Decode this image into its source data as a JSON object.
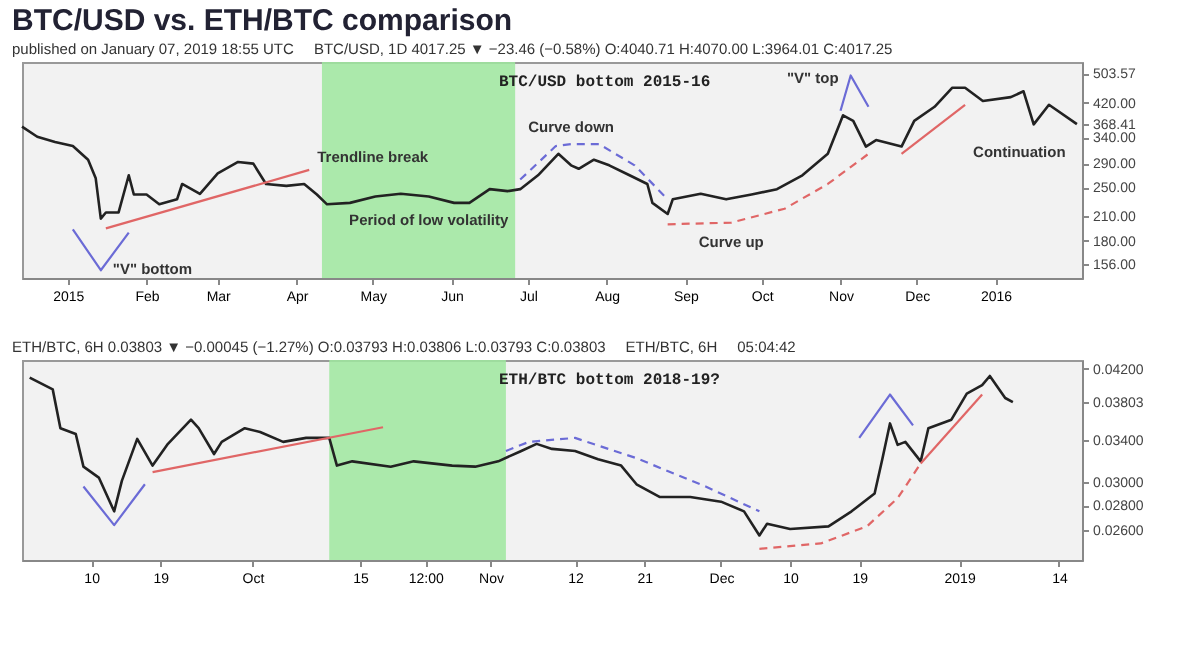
{
  "chart_data": [
    {
      "type": "line",
      "title": "BTC/USD vs. ETH/BTC comparison",
      "subtitle": "BTC/USD bottom 2015-16",
      "log": true,
      "annotations": [
        "published on January 07, 2019 18:55 UTC",
        "BTC/USD, 1D 4017.25 ▼ −23.46 (−0.58%) O:4040.71 H:4070.00 L:3964.01 C:4017.25",
        {
          "text": "Trendline break",
          "x": "2015-04-06",
          "y": 278
        },
        {
          "text": "\"V\" bottom",
          "x": "2015-01-14",
          "y": 150
        },
        {
          "text": "Period of low volatility",
          "x": "2015-05-23",
          "y": 236
        },
        {
          "text": "Curve down",
          "x": "2015-07-18",
          "y": 326
        },
        {
          "text": "\"V\" top",
          "x": "2015-11-05",
          "y": 497
        },
        {
          "text": "Curve up",
          "x": "2015-09-19",
          "y": 201
        },
        {
          "text": "Continuation",
          "x": "2015-12-20",
          "y": 415
        }
      ],
      "xlim": [
        "2014-12-14",
        "2016-02-04"
      ],
      "xticks": [
        {
          "value": "2015-01-01",
          "label": "2015"
        },
        {
          "value": "2015-02-01",
          "label": "Feb"
        },
        {
          "value": "2015-03-01",
          "label": "Mar"
        },
        {
          "value": "2015-04-01",
          "label": "Apr"
        },
        {
          "value": "2015-05-01",
          "label": "May"
        },
        {
          "value": "2015-06-01",
          "label": "Jun"
        },
        {
          "value": "2015-07-01",
          "label": "Jul"
        },
        {
          "value": "2015-08-01",
          "label": "Aug"
        },
        {
          "value": "2015-09-01",
          "label": "Sep"
        },
        {
          "value": "2015-10-01",
          "label": "Oct"
        },
        {
          "value": "2015-11-01",
          "label": "Nov"
        },
        {
          "value": "2015-12-01",
          "label": "Dec"
        },
        {
          "value": "2016-01-01",
          "label": "2016"
        }
      ],
      "ylim": [
        143,
        540
      ],
      "yticks": [
        {
          "value": 503.57,
          "label": "503.57"
        },
        {
          "value": 420,
          "label": "420.00"
        },
        {
          "value": 368.41,
          "label": "368.41"
        },
        {
          "value": 340,
          "label": "340.00"
        },
        {
          "value": 290,
          "label": "290.00"
        },
        {
          "value": 250,
          "label": "250.00"
        },
        {
          "value": 210,
          "label": "210.00"
        },
        {
          "value": 180,
          "label": "180.00"
        },
        {
          "value": 156,
          "label": "156.00"
        }
      ],
      "bands": [
        {
          "axis": "x",
          "from": "2015-04-11",
          "to": "2015-06-26",
          "color": "#9fe89f"
        }
      ],
      "series": [
        {
          "color": "#222222",
          "x": [
            "2014-12-14",
            "2014-12-20",
            "2014-12-27",
            "2015-01-03",
            "2015-01-09",
            "2015-01-12",
            "2015-01-14",
            "2015-01-16",
            "2015-01-21",
            "2015-01-25",
            "2015-01-27",
            "2015-02-01",
            "2015-02-06",
            "2015-02-13",
            "2015-02-15",
            "2015-02-22",
            "2015-03-01",
            "2015-03-09",
            "2015-03-15",
            "2015-03-20",
            "2015-03-28",
            "2015-04-04",
            "2015-04-09",
            "2015-04-13",
            "2015-04-22",
            "2015-05-02",
            "2015-05-12",
            "2015-05-23",
            "2015-06-02",
            "2015-06-08",
            "2015-06-16",
            "2015-06-23",
            "2015-06-28",
            "2015-07-05",
            "2015-07-13",
            "2015-07-18",
            "2015-07-21",
            "2015-07-27",
            "2015-08-02",
            "2015-08-10",
            "2015-08-17",
            "2015-08-19",
            "2015-08-25",
            "2015-08-27",
            "2015-09-07",
            "2015-09-17",
            "2015-09-27",
            "2015-10-07",
            "2015-10-17",
            "2015-10-27",
            "2015-11-02",
            "2015-11-06",
            "2015-11-11",
            "2015-11-15",
            "2015-11-25",
            "2015-11-30",
            "2015-12-08",
            "2015-12-15",
            "2015-12-20",
            "2015-12-27",
            "2016-01-07",
            "2016-01-12",
            "2016-01-16",
            "2016-01-22",
            "2016-02-02"
          ],
          "values": [
            363,
            341,
            330,
            322,
            296,
            264,
            206,
            214,
            214,
            269,
            239,
            239,
            225,
            232,
            255,
            240,
            272,
            292,
            289,
            255,
            252,
            255,
            239,
            225,
            227,
            236,
            240,
            236,
            227,
            227,
            247,
            244,
            247,
            269,
            307,
            286,
            280,
            296,
            286,
            269,
            255,
            227,
            212,
            232,
            240,
            232,
            239,
            247,
            269,
            307,
            389,
            376,
            321,
            334,
            321,
            376,
            410,
            461,
            461,
            425,
            435,
            451,
            368,
            415,
            368.41
          ]
        },
        {
          "type": "line",
          "color": "#e06666",
          "x": [
            "2015-01-16",
            "2015-04-06"
          ],
          "values": [
            194,
            278
          ]
        },
        {
          "type": "line",
          "color": "#6b6bd6",
          "x": [
            "2015-01-03",
            "2015-01-14",
            "2015-01-25"
          ],
          "values": [
            193,
            150,
            189
          ]
        },
        {
          "type": "line",
          "color": "#6b6bd6",
          "line_style": "dashed",
          "x": [
            "2015-06-28",
            "2015-07-12",
            "2015-07-18",
            "2015-07-29",
            "2015-08-12",
            "2015-08-25"
          ],
          "values": [
            262,
            322,
            326,
            326,
            286,
            232
          ]
        },
        {
          "type": "line",
          "color": "#e06666",
          "line_style": "dashed",
          "x": [
            "2015-08-25",
            "2015-09-19",
            "2015-10-10",
            "2015-10-27",
            "2015-11-12"
          ],
          "values": [
            199,
            201,
            219,
            255,
            307
          ]
        },
        {
          "type": "line",
          "color": "#6b6bd6",
          "x": [
            "2015-11-01",
            "2015-11-05",
            "2015-11-12"
          ],
          "values": [
            400,
            497,
            410
          ]
        },
        {
          "type": "line",
          "color": "#e06666",
          "x": [
            "2015-11-25",
            "2015-12-20"
          ],
          "values": [
            307,
            415
          ]
        }
      ]
    },
    {
      "type": "line",
      "subtitle": "ETH/BTC bottom 2018-19?",
      "log": true,
      "annotations": [
        "ETH/BTC, 6H 0.03803 ▼ −0.00045 (−1.27%) O:0.03793 H:0.03806 L:0.03793 C:0.03803",
        "ETH/BTC, 6H",
        "05:04:42"
      ],
      "xlim": [
        "2018-09-01",
        "2019-01-17"
      ],
      "xticks": [
        {
          "value": "2018-09-10",
          "label": "10"
        },
        {
          "value": "2018-09-19",
          "label": "19"
        },
        {
          "value": "2018-10-01",
          "label": "Oct"
        },
        {
          "value": "2018-10-15",
          "label": "15"
        },
        {
          "value": "2018-10-23T12:00",
          "label": "12:00"
        },
        {
          "value": "2018-11-01",
          "label": "Nov"
        },
        {
          "value": "2018-11-12",
          "label": "12"
        },
        {
          "value": "2018-11-21",
          "label": "21"
        },
        {
          "value": "2018-12-01",
          "label": "Dec"
        },
        {
          "value": "2018-12-10",
          "label": "10"
        },
        {
          "value": "2018-12-19",
          "label": "19"
        },
        {
          "value": "2019-01-01",
          "label": "2019"
        },
        {
          "value": "2019-01-14",
          "label": "14"
        }
      ],
      "ylim": [
        0.0238,
        0.0431
      ],
      "yticks": [
        {
          "value": 0.042,
          "label": "0.04200"
        },
        {
          "value": 0.03803,
          "label": "0.03803"
        },
        {
          "value": 0.034,
          "label": "0.03400"
        },
        {
          "value": 0.03,
          "label": "0.03000"
        },
        {
          "value": 0.028,
          "label": "0.02800"
        },
        {
          "value": 0.026,
          "label": "0.02600"
        }
      ],
      "bands": [
        {
          "axis": "x",
          "from": "2018-10-11",
          "to": "2018-11-03",
          "color": "#9fe89f"
        }
      ],
      "series": [
        {
          "color": "#222222",
          "x": [
            "2018-09-02",
            "2018-09-05",
            "2018-09-06",
            "2018-09-08",
            "2018-09-09",
            "2018-09-11",
            "2018-09-13",
            "2018-09-14",
            "2018-09-16",
            "2018-09-18",
            "2018-09-20",
            "2018-09-23",
            "2018-09-24",
            "2018-09-26",
            "2018-09-27",
            "2018-09-30",
            "2018-10-02",
            "2018-10-05",
            "2018-10-08",
            "2018-10-11",
            "2018-10-12",
            "2018-10-14",
            "2018-10-19",
            "2018-10-22",
            "2018-10-27",
            "2018-10-30",
            "2018-11-02",
            "2018-11-05",
            "2018-11-07",
            "2018-11-09",
            "2018-11-12",
            "2018-11-15",
            "2018-11-18",
            "2018-11-20",
            "2018-11-23",
            "2018-11-27",
            "2018-12-01",
            "2018-12-04",
            "2018-12-06",
            "2018-12-07",
            "2018-12-10",
            "2018-12-15",
            "2018-12-18",
            "2018-12-21",
            "2018-12-22",
            "2018-12-23",
            "2018-12-24",
            "2018-12-25",
            "2018-12-27",
            "2018-12-28",
            "2018-12-31",
            "2019-01-02",
            "2019-01-04",
            "2019-01-05",
            "2019-01-07",
            "2019-01-08"
          ],
          "values": [
            0.0409,
            0.0395,
            0.0352,
            0.0346,
            0.0314,
            0.0304,
            0.0275,
            0.0301,
            0.0341,
            0.0315,
            0.0336,
            0.0361,
            0.0352,
            0.0326,
            0.0338,
            0.0352,
            0.0348,
            0.0338,
            0.0342,
            0.0342,
            0.0315,
            0.0319,
            0.0314,
            0.0319,
            0.0315,
            0.0314,
            0.0319,
            0.0329,
            0.0336,
            0.0331,
            0.0329,
            0.0321,
            0.0315,
            0.0298,
            0.0287,
            0.0287,
            0.0283,
            0.0275,
            0.0256,
            0.0265,
            0.0261,
            0.0263,
            0.0275,
            0.029,
            0.0321,
            0.0357,
            0.0335,
            0.0338,
            0.0319,
            0.0352,
            0.0361,
            0.039,
            0.04,
            0.0411,
            0.0385,
            0.03803
          ]
        },
        {
          "type": "line",
          "color": "#6b6bd6",
          "x": [
            "2018-09-09",
            "2018-09-13",
            "2018-09-17"
          ],
          "values": [
            0.0296,
            0.0264,
            0.0298
          ]
        },
        {
          "type": "line",
          "color": "#e06666",
          "x": [
            "2018-09-18",
            "2018-10-18"
          ],
          "values": [
            0.0309,
            0.0353
          ]
        },
        {
          "type": "line",
          "color": "#6b6bd6",
          "line_style": "dashed",
          "x": [
            "2018-11-03",
            "2018-11-06",
            "2018-11-12",
            "2018-11-20",
            "2018-11-29",
            "2018-12-06"
          ],
          "values": [
            0.0329,
            0.0338,
            0.0342,
            0.0322,
            0.0296,
            0.0275
          ]
        },
        {
          "type": "line",
          "color": "#e06666",
          "line_style": "dashed",
          "x": [
            "2018-12-06",
            "2018-12-14",
            "2018-12-20",
            "2018-12-24",
            "2018-12-27"
          ],
          "values": [
            0.0246,
            0.025,
            0.0263,
            0.0286,
            0.0317
          ]
        },
        {
          "type": "line",
          "color": "#6b6bd6",
          "x": [
            "2018-12-19",
            "2018-12-23",
            "2018-12-26"
          ],
          "values": [
            0.0342,
            0.0389,
            0.0355
          ]
        },
        {
          "type": "line",
          "color": "#e06666",
          "x": [
            "2018-12-27",
            "2019-01-04"
          ],
          "values": [
            0.0317,
            0.0389
          ]
        }
      ]
    }
  ]
}
